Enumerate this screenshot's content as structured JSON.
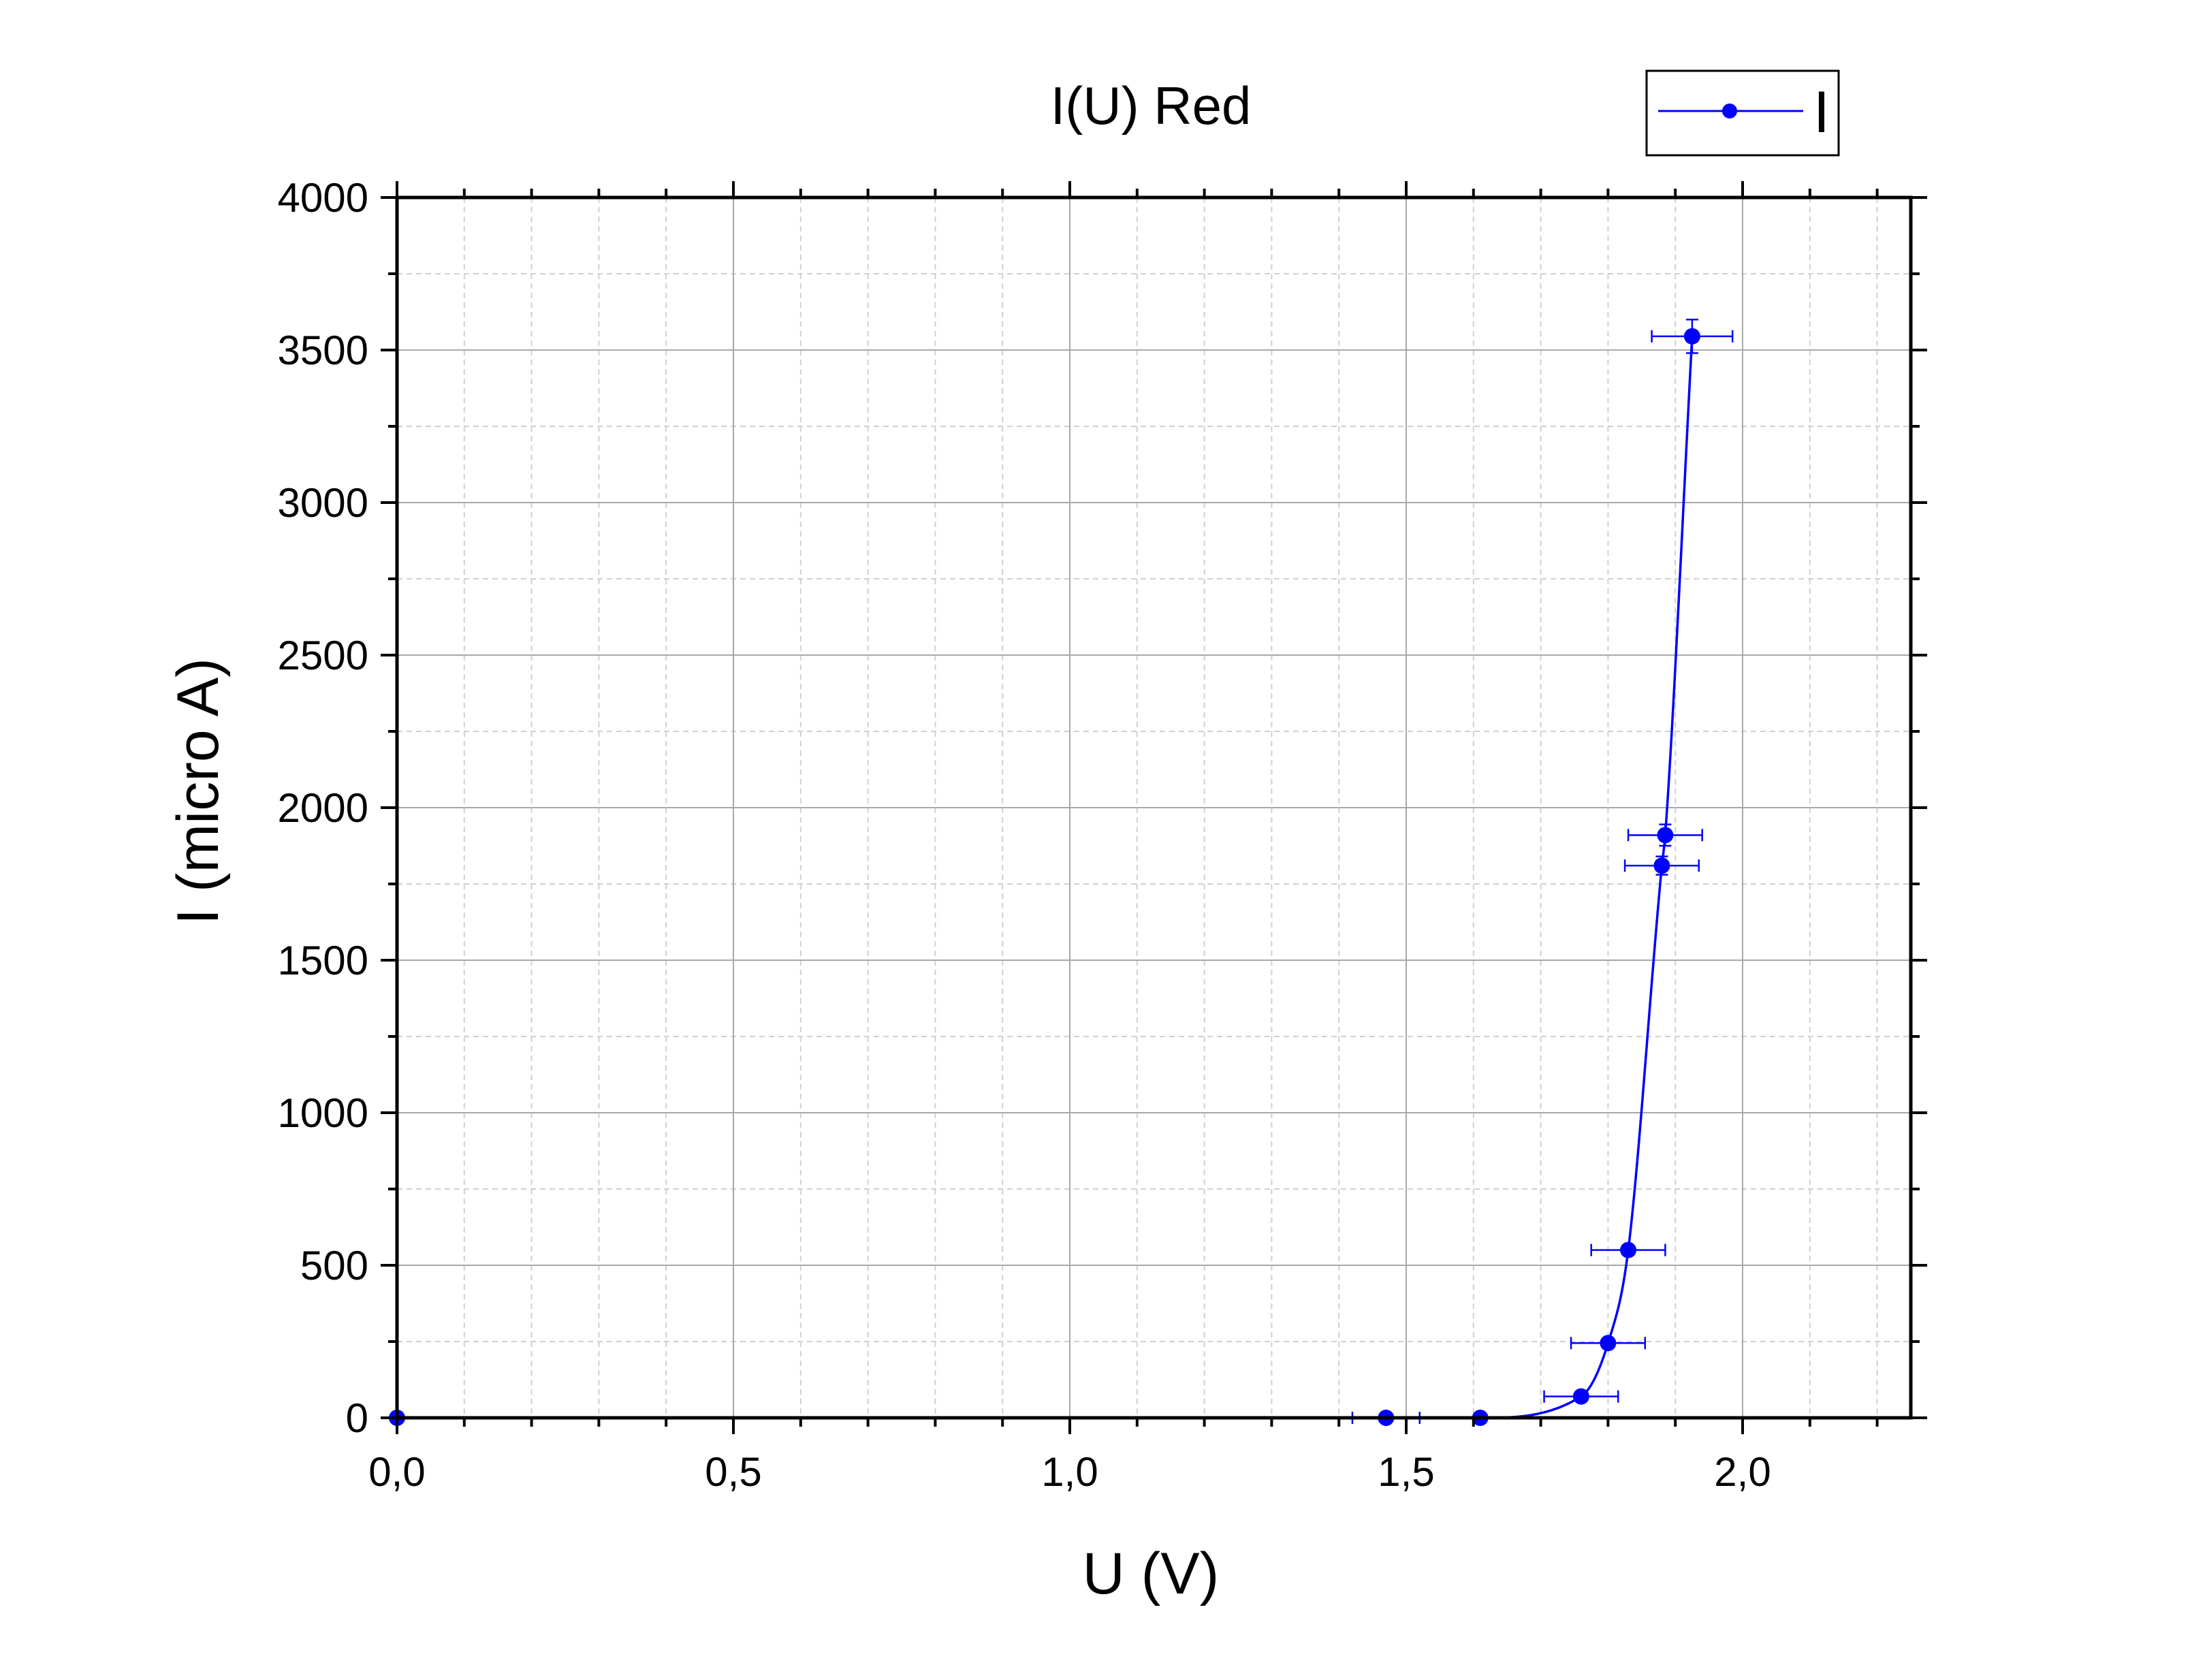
{
  "chart_data": {
    "type": "scatter",
    "title": "I(U) Red",
    "xlabel": "U (V)",
    "ylabel": "I (micro A)",
    "xlim": [
      0,
      2.25
    ],
    "ylim": [
      0,
      4000
    ],
    "x_ticks": [
      0,
      0.5,
      1.0,
      1.5,
      2.0
    ],
    "x_tick_labels": [
      "0,0",
      "0,5",
      "1,0",
      "1,5",
      "2,0"
    ],
    "x_minor_step": 0.1,
    "y_ticks": [
      0,
      500,
      1000,
      1500,
      2000,
      2500,
      3000,
      3500,
      4000
    ],
    "y_tick_labels": [
      "0",
      "500",
      "1000",
      "1500",
      "2000",
      "2500",
      "3000",
      "3500",
      "4000"
    ],
    "y_minor_step": 250,
    "grid": true,
    "legend": "top-right",
    "series": [
      {
        "name": "I",
        "color": "#0000ff",
        "marker": "circle",
        "line": "smooth",
        "x": [
          0.0,
          1.47,
          1.61,
          1.76,
          1.8,
          1.83,
          1.88,
          1.885,
          1.925
        ],
        "y": [
          0,
          0,
          0,
          70,
          245,
          550,
          1810,
          1910,
          3545
        ],
        "x_err": [
          0,
          0.05,
          0,
          0.055,
          0.055,
          0.055,
          0.055,
          0.055,
          0.06
        ],
        "y_err": [
          0,
          0,
          0,
          0,
          0,
          0,
          30,
          35,
          55
        ]
      }
    ]
  }
}
